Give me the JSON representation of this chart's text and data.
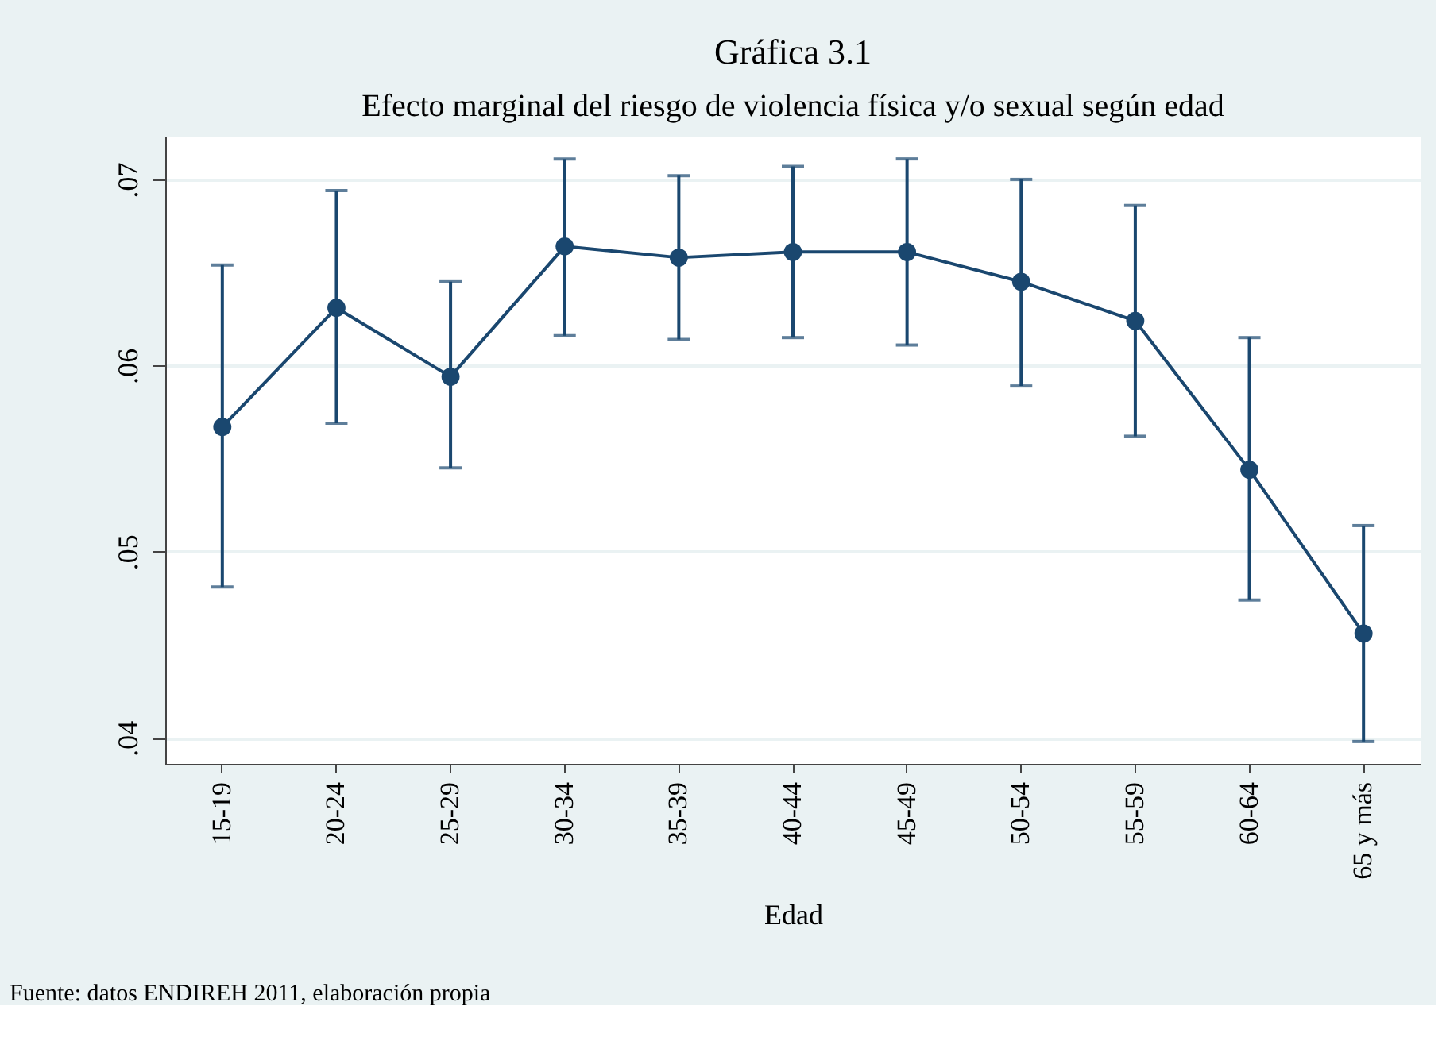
{
  "chart_data": {
    "type": "line",
    "title": "Gráfica 3.1",
    "subtitle": "Efecto marginal del riesgo de violencia física y/o sexual según edad",
    "xlabel": "Edad",
    "categories": [
      "15-19",
      "20-24",
      "25-29",
      "30-34",
      "35-39",
      "40-44",
      "45-49",
      "50-54",
      "55-59",
      "60-64",
      "65 y más"
    ],
    "series": [
      {
        "color": "#1a476f",
        "values": [
          0.0567,
          0.0631,
          0.0594,
          0.0664,
          0.0658,
          0.0661,
          0.0661,
          0.0645,
          0.0624,
          0.0544,
          0.0456
        ],
        "errors": [
          [
            0.0481,
            0.0654
          ],
          [
            0.0569,
            0.0694
          ],
          [
            0.0545,
            0.0645
          ],
          [
            0.0616,
            0.0711
          ],
          [
            0.0614,
            0.0702
          ],
          [
            0.0615,
            0.0707
          ],
          [
            0.0611,
            0.0711
          ],
          [
            0.0589,
            0.07
          ],
          [
            0.0562,
            0.0686
          ],
          [
            0.0474,
            0.0615
          ],
          [
            0.0398,
            0.0514
          ]
        ]
      }
    ],
    "ylim": [
      0.0386,
      0.0723
    ],
    "yticks": [
      {
        "value": 0.04,
        "label": ".04"
      },
      {
        "value": 0.05,
        "label": ".05"
      },
      {
        "value": 0.06,
        "label": ".06"
      },
      {
        "value": 0.07,
        "label": ".07"
      }
    ],
    "grid": "y",
    "marker": "circle",
    "line_style": "solid",
    "annotations": [
      "Fuente: datos ENDIREH 2011, elaboración propia"
    ]
  }
}
